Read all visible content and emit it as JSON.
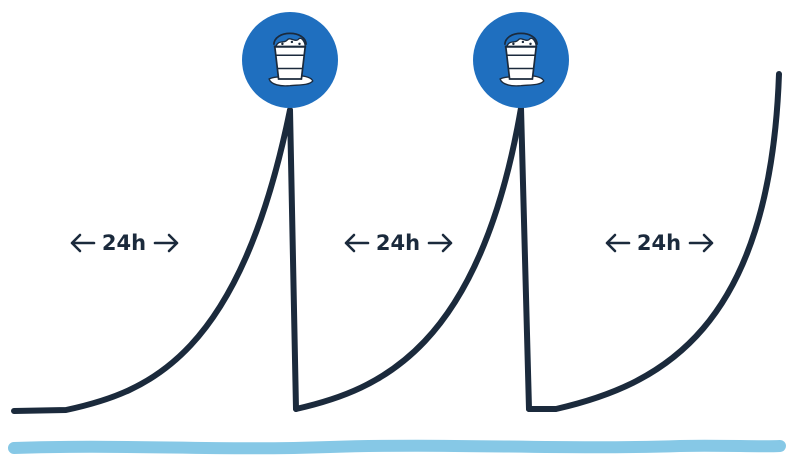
{
  "intervals": [
    {
      "label": "24h"
    },
    {
      "label": "24h"
    },
    {
      "label": "24h"
    }
  ],
  "events": [
    {
      "icon": "bucket-of-ice-icon"
    },
    {
      "icon": "bucket-of-ice-icon"
    }
  ],
  "colors": {
    "curve": "#1b2a3c",
    "event_circle": "#1f6fbf",
    "baseline": "#86c8e6",
    "bucket_fill": "#ffffff"
  }
}
